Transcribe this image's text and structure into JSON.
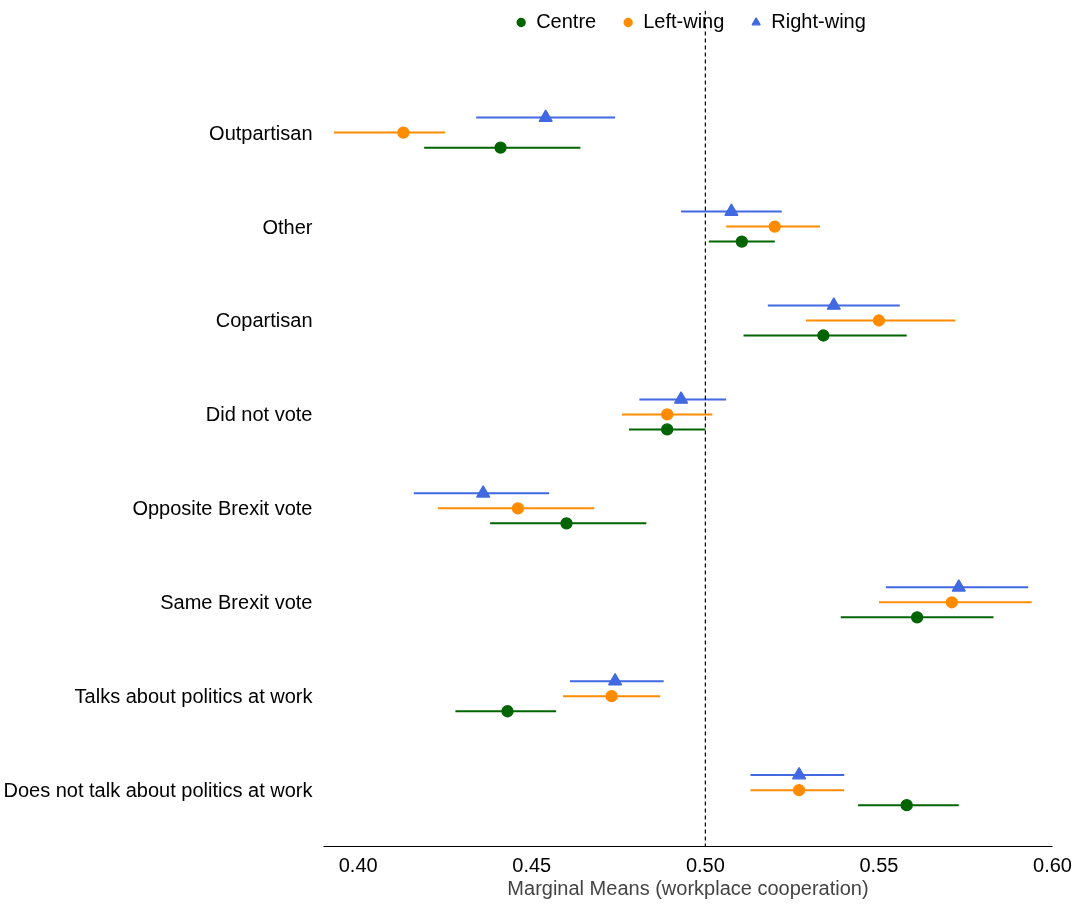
{
  "chart_data": {
    "type": "scatter",
    "orientation": "horizontal",
    "xlabel": "Marginal Means (workplace cooperation)",
    "categories": [
      "Outpartisan",
      "Other",
      "Copartisan",
      "Did not vote",
      "Opposite Brexit vote",
      "Same Brexit vote",
      "Talks about politics at work",
      "Does not talk about politics at work"
    ],
    "series": [
      {
        "name": "Right-wing",
        "color": "#4169e1",
        "marker": "triangle",
        "values": [
          0.454,
          0.5075,
          0.537,
          0.493,
          0.436,
          0.573,
          0.474,
          0.527
        ],
        "errors": [
          [
            0.434,
            0.474
          ],
          [
            0.493,
            0.522
          ],
          [
            0.518,
            0.556
          ],
          [
            0.481,
            0.506
          ],
          [
            0.416,
            0.455
          ],
          [
            0.552,
            0.593
          ],
          [
            0.461,
            0.488
          ],
          [
            0.513,
            0.54
          ]
        ]
      },
      {
        "name": "Left-wing",
        "color": "#ff8c00",
        "marker": "circle",
        "values": [
          0.413,
          0.52,
          0.55,
          0.489,
          0.446,
          0.571,
          0.473,
          0.527
        ],
        "errors": [
          [
            0.393,
            0.425
          ],
          [
            0.506,
            0.533
          ],
          [
            0.529,
            0.572
          ],
          [
            0.476,
            0.502
          ],
          [
            0.423,
            0.468
          ],
          [
            0.55,
            0.594
          ],
          [
            0.459,
            0.487
          ],
          [
            0.513,
            0.54
          ]
        ]
      },
      {
        "name": "Centre",
        "color": "#006400",
        "marker": "circle",
        "values": [
          0.441,
          0.5105,
          0.534,
          0.489,
          0.46,
          0.561,
          0.443,
          0.558
        ],
        "errors": [
          [
            0.419,
            0.464
          ],
          [
            0.501,
            0.52
          ],
          [
            0.511,
            0.558
          ],
          [
            0.478,
            0.5
          ],
          [
            0.438,
            0.483
          ],
          [
            0.539,
            0.583
          ],
          [
            0.428,
            0.457
          ],
          [
            0.544,
            0.573
          ]
        ]
      }
    ],
    "xlim": [
      0.39,
      0.6
    ],
    "xticks": [
      {
        "value": 0.4,
        "label": "0.40"
      },
      {
        "value": 0.45,
        "label": "0.45"
      },
      {
        "value": 0.5,
        "label": "0.50"
      },
      {
        "value": 0.55,
        "label": "0.55"
      },
      {
        "value": 0.6,
        "label": "0.60"
      }
    ],
    "ref_lines": [
      {
        "axis": "x",
        "value": 0.5,
        "label": null,
        "color": "#000000",
        "line_style": "dashed"
      }
    ],
    "grid": false,
    "legend": "top"
  }
}
